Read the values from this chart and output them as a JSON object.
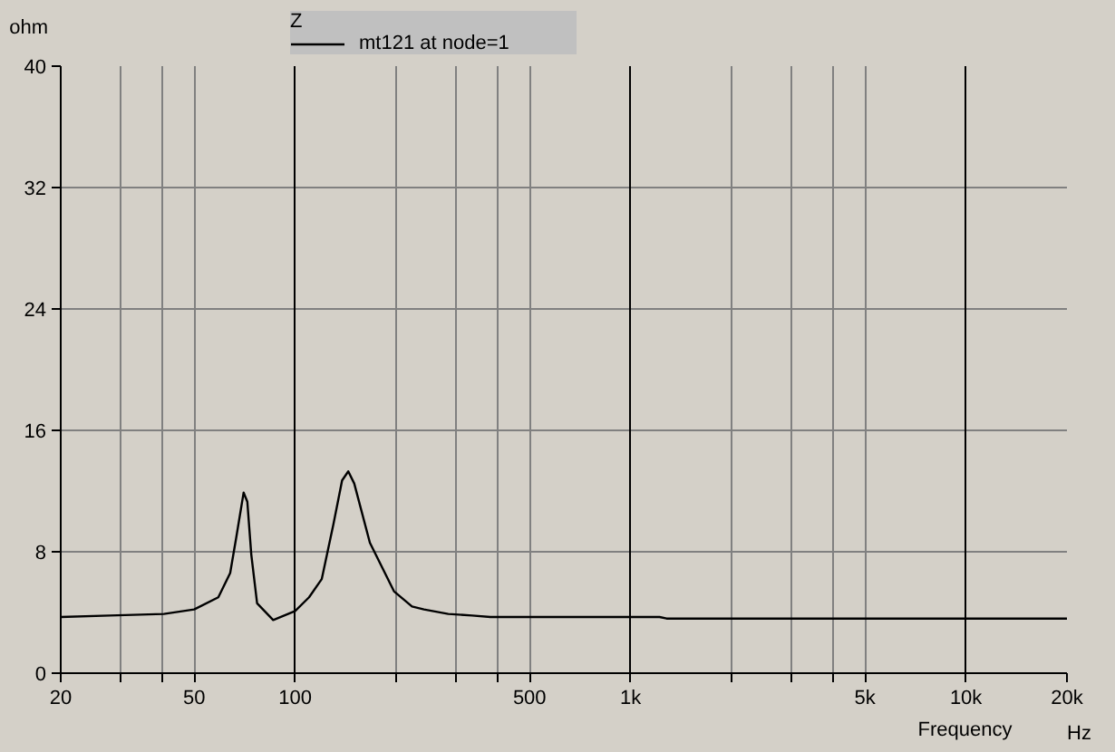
{
  "chart_data": {
    "type": "line",
    "ylabel": "ohm",
    "xlabel": "Frequency",
    "legend_title": "Z",
    "annotations": [
      "Hz"
    ],
    "log": "x",
    "xlim": [
      20,
      20000
    ],
    "ylim": [
      0,
      40
    ],
    "xticks": [
      20,
      {
        "value": 30,
        "label": null
      },
      {
        "value": 40,
        "label": null
      },
      50,
      100,
      {
        "value": 200,
        "label": null
      },
      {
        "value": 300,
        "label": null
      },
      {
        "value": 400,
        "label": null
      },
      500,
      {
        "value": 1000,
        "label": "1k"
      },
      {
        "value": 2000,
        "label": null
      },
      {
        "value": 3000,
        "label": null
      },
      {
        "value": 4000,
        "label": null
      },
      {
        "value": 5000,
        "label": "5k"
      },
      {
        "value": 10000,
        "label": "10k"
      },
      {
        "value": 20000,
        "label": "20k"
      }
    ],
    "yticks": [
      0,
      8,
      16,
      24,
      32,
      40
    ],
    "grid": true,
    "legend": "top",
    "series": [
      {
        "name": "mt121 at node=1",
        "color": "#000000",
        "x": [
          20,
          28,
          40.6,
          50,
          59,
          64,
          66.8,
          70.2,
          72,
          74,
          77,
          86,
          100,
          110,
          120,
          130,
          138,
          144,
          150,
          167,
          197,
          223,
          242,
          286,
          337,
          382,
          490,
          1220,
          1280,
          20000
        ],
        "values": [
          3.7,
          3.8,
          3.9,
          4.2,
          5.0,
          6.6,
          9.0,
          11.9,
          11.3,
          7.8,
          4.6,
          3.5,
          4.1,
          5.0,
          6.2,
          9.8,
          12.7,
          13.3,
          12.5,
          8.6,
          5.4,
          4.4,
          4.2,
          3.9,
          3.8,
          3.7,
          3.7,
          3.7,
          3.6,
          3.6
        ]
      }
    ]
  }
}
